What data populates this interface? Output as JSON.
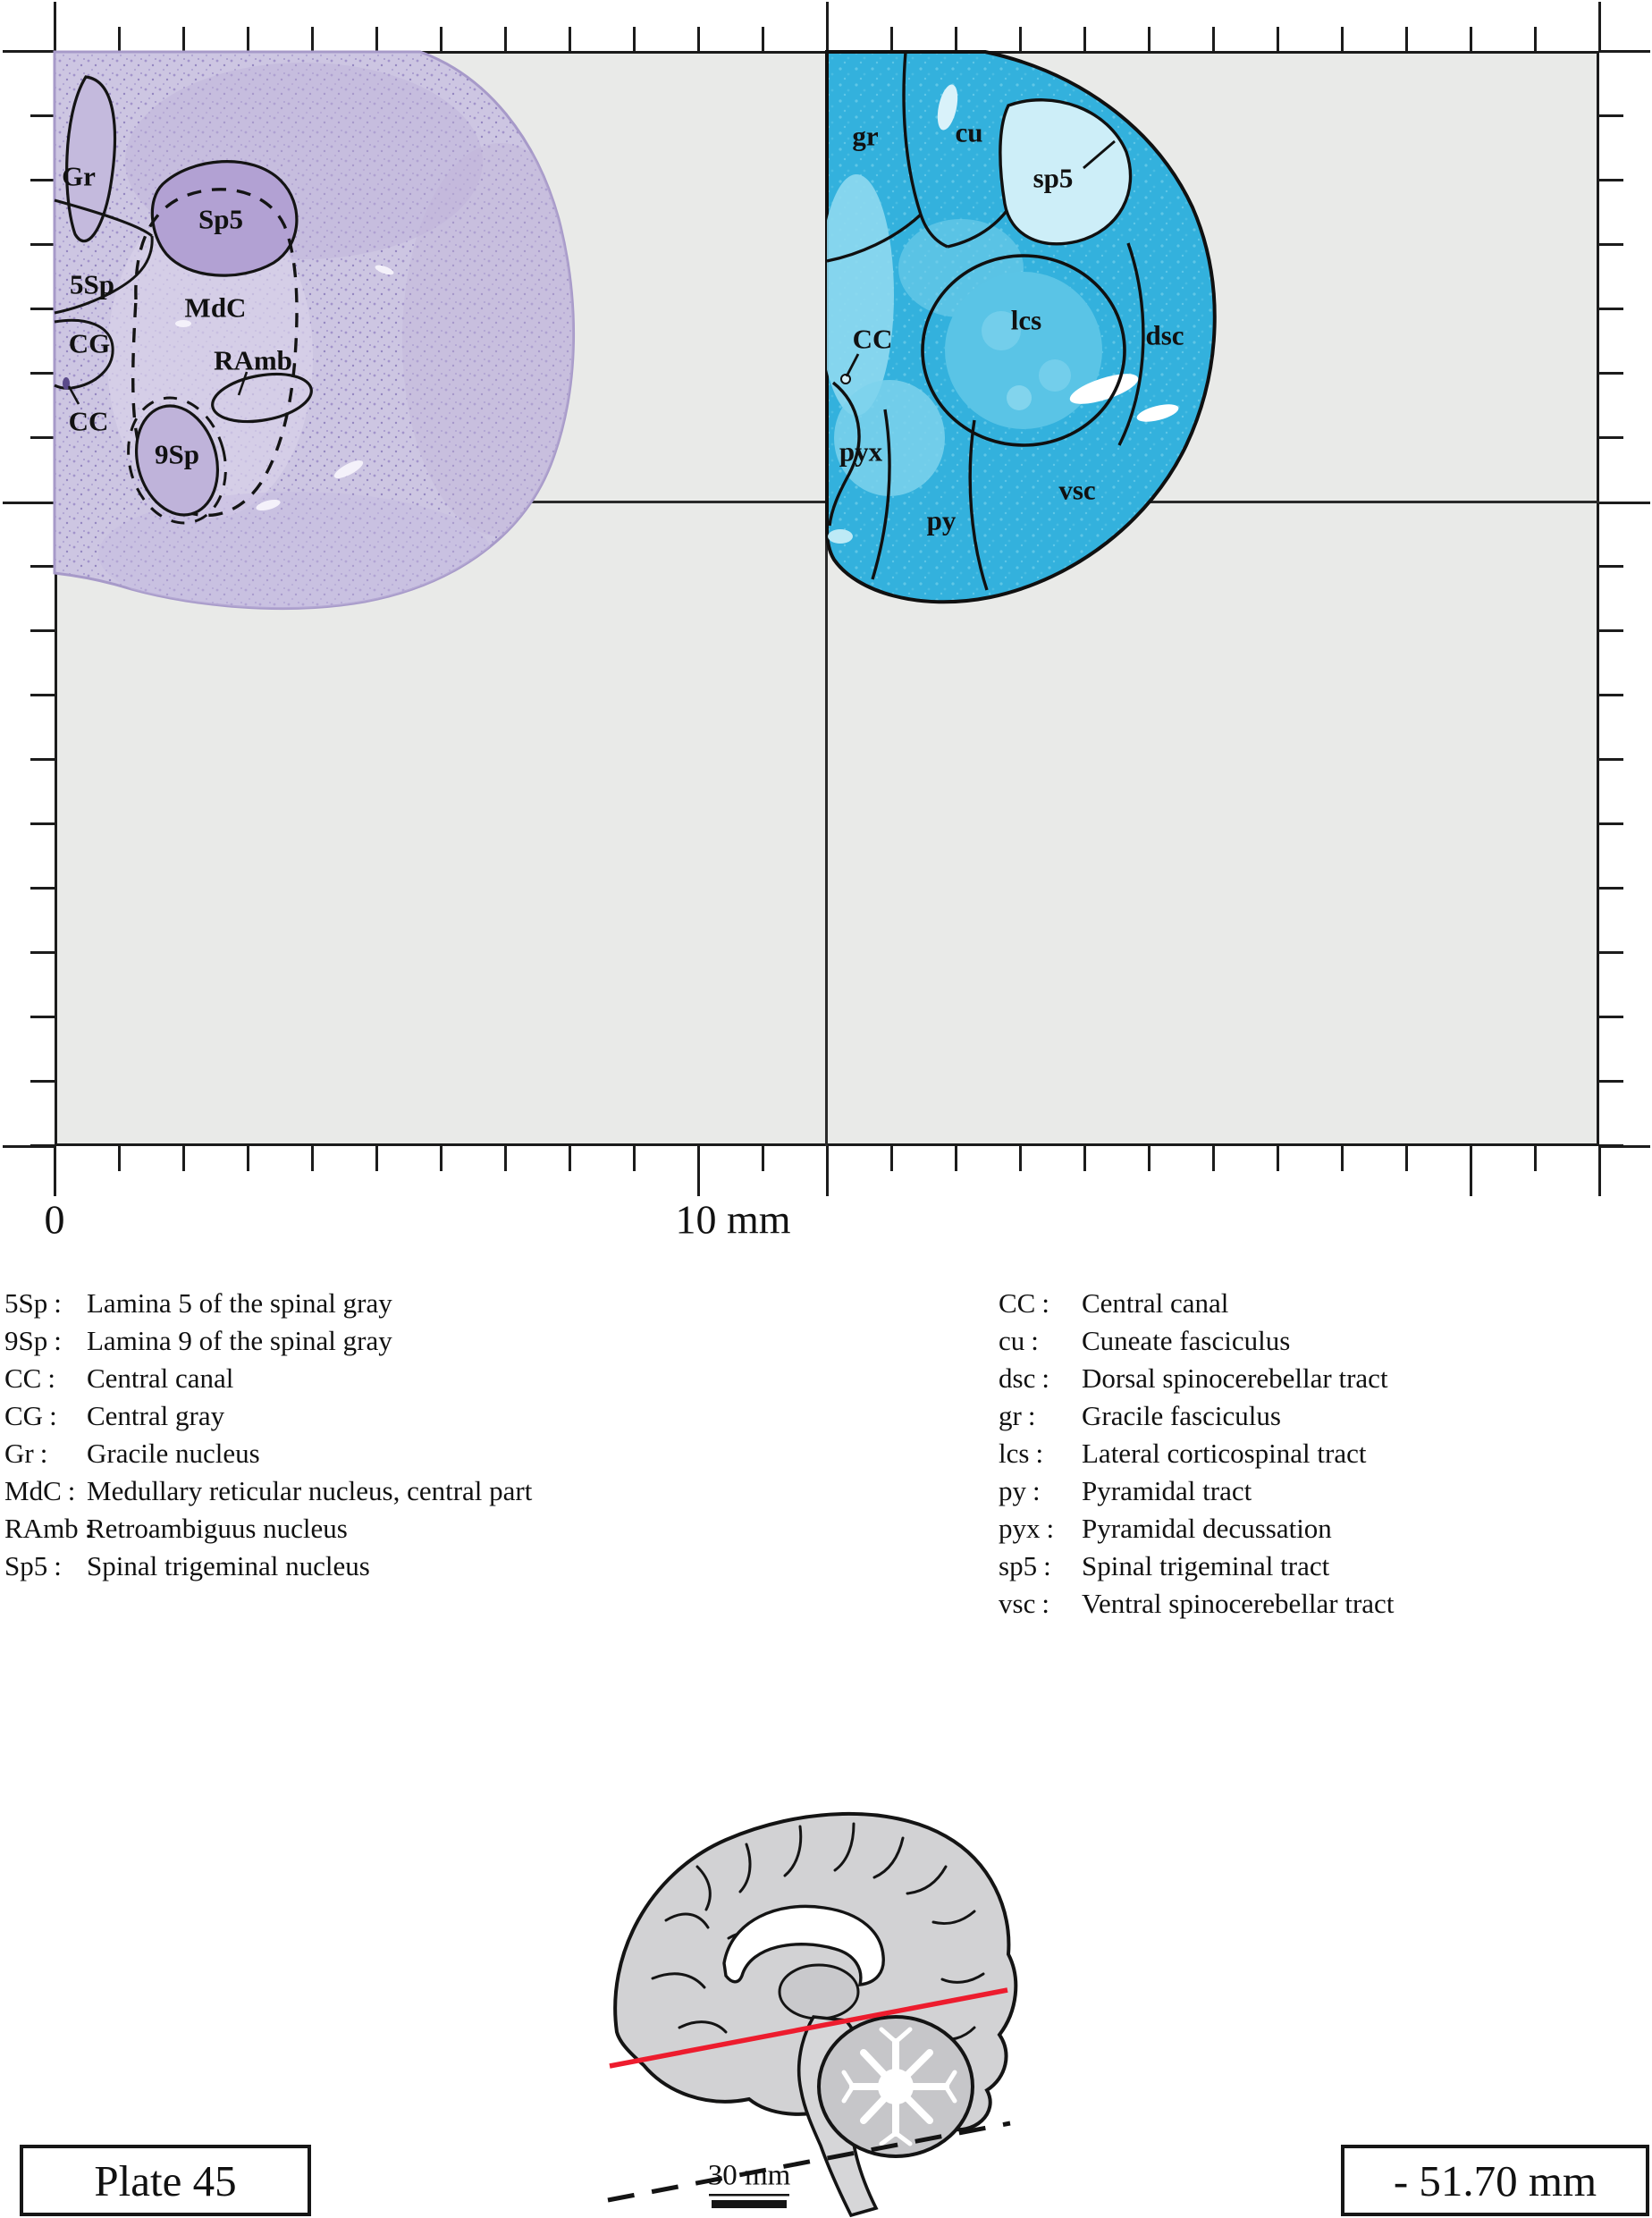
{
  "plate": {
    "title": "Plate 45",
    "coordinate": "- 51.70 mm"
  },
  "axis": {
    "zero_label": "0",
    "ten_label": "10 mm"
  },
  "inset": {
    "scale_label": "30 mm"
  },
  "labels": {
    "nissl": [
      "Gr",
      "Sp5",
      "5Sp",
      "MdC",
      "RAmb",
      "CG",
      "CC",
      "9Sp"
    ],
    "myelin": [
      "gr",
      "cu",
      "sp5",
      "CC",
      "lcs",
      "dsc",
      "pyx",
      "py",
      "vsc"
    ]
  },
  "legend": {
    "separator": ":",
    "left": [
      {
        "abbr": "5Sp",
        "desc": "Lamina 5 of the spinal gray"
      },
      {
        "abbr": "9Sp",
        "desc": "Lamina 9 of the spinal gray"
      },
      {
        "abbr": "CC",
        "desc": "Central canal"
      },
      {
        "abbr": "CG",
        "desc": "Central gray"
      },
      {
        "abbr": "Gr",
        "desc": "Gracile nucleus"
      },
      {
        "abbr": "MdC",
        "desc": "Medullary reticular nucleus, central part"
      },
      {
        "abbr": "RAmb",
        "desc": "Retroambiguus nucleus"
      },
      {
        "abbr": "Sp5",
        "desc": "Spinal trigeminal nucleus"
      }
    ],
    "right": [
      {
        "abbr": "CC",
        "desc": "Central canal"
      },
      {
        "abbr": "cu",
        "desc": "Cuneate fasciculus"
      },
      {
        "abbr": "dsc",
        "desc": "Dorsal spinocerebellar tract"
      },
      {
        "abbr": "gr",
        "desc": "Gracile fasciculus"
      },
      {
        "abbr": "lcs",
        "desc": "Lateral corticospinal tract"
      },
      {
        "abbr": "py",
        "desc": "Pyramidal tract"
      },
      {
        "abbr": "pyx",
        "desc": "Pyramidal decussation"
      },
      {
        "abbr": "sp5",
        "desc": "Spinal trigeminal tract"
      },
      {
        "abbr": "vsc",
        "desc": "Ventral spinocerebellar tract"
      }
    ]
  },
  "colors": {
    "section_line_color": "#ed1c2e",
    "nissl_tissue": "#cdc6e2",
    "myelin_tissue": "#33b1dd",
    "grid_background": "#e9eae8"
  }
}
